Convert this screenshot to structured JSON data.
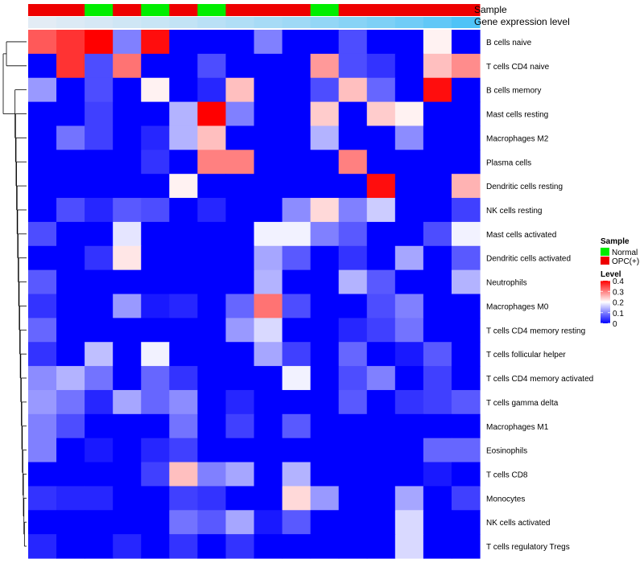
{
  "chart_data": {
    "type": "heatmap",
    "annotation_labels": [
      "Sample",
      "Gene expression level"
    ],
    "sample_groups": [
      "OPC(+)",
      "OPC(+)",
      "Normal",
      "OPC(+)",
      "Normal",
      "OPC(+)",
      "Normal",
      "OPC(+)",
      "OPC(+)",
      "OPC(+)",
      "Normal",
      "OPC(+)",
      "OPC(+)",
      "OPC(+)",
      "OPC(+)",
      "OPC(+)"
    ],
    "expression_level_bar": [
      0.05,
      0.08,
      0.11,
      0.14,
      0.17,
      0.2,
      0.24,
      0.28,
      0.32,
      0.36,
      0.41,
      0.46,
      0.51,
      0.57,
      0.64,
      0.72
    ],
    "rows": [
      "B cells naive",
      "T cells CD4 naive",
      "B cells memory",
      "Mast cells resting",
      "Macrophages M2",
      "Plasma cells",
      "Dendritic cells resting",
      "NK cells resting",
      "Mast cells activated",
      "Dendritic cells activated",
      "Neutrophils",
      "Macrophages M0",
      "T cells CD4 memory resting",
      "T cells follicular helper",
      "T cells CD4 memory activated",
      "T cells gamma delta",
      "Macrophages M1",
      "Eosinophils",
      "T cells CD8",
      "Monocytes",
      "NK cells activated",
      "T cells regulatory  Tregs"
    ],
    "values": [
      [
        0.33,
        0.36,
        0.4,
        0.1,
        0.39,
        0.0,
        0.0,
        0.0,
        0.1,
        0.0,
        0.0,
        0.06,
        0.0,
        0.0,
        0.21,
        0.0
      ],
      [
        0.0,
        0.36,
        0.06,
        0.31,
        0.0,
        0.0,
        0.06,
        0.0,
        0.0,
        0.0,
        0.28,
        0.06,
        0.04,
        0.0,
        0.25,
        0.29
      ],
      [
        0.12,
        0.0,
        0.06,
        0.0,
        0.21,
        0.0,
        0.03,
        0.25,
        0.0,
        0.0,
        0.06,
        0.25,
        0.08,
        0.0,
        0.39,
        0.0
      ],
      [
        0.0,
        0.0,
        0.05,
        0.0,
        0.0,
        0.14,
        0.4,
        0.1,
        0.0,
        0.0,
        0.24,
        0.0,
        0.24,
        0.21,
        0.0,
        0.0
      ],
      [
        0.0,
        0.09,
        0.05,
        0.0,
        0.03,
        0.14,
        0.25,
        0.0,
        0.0,
        0.0,
        0.14,
        0.0,
        0.0,
        0.11,
        0.0,
        0.0
      ],
      [
        0.0,
        0.0,
        0.0,
        0.0,
        0.04,
        0.0,
        0.3,
        0.3,
        0.0,
        0.0,
        0.0,
        0.3,
        0.0,
        0.0,
        0.0,
        0.0
      ],
      [
        0.0,
        0.0,
        0.0,
        0.0,
        0.0,
        0.21,
        0.0,
        0.0,
        0.0,
        0.0,
        0.0,
        0.0,
        0.39,
        0.0,
        0.0,
        0.26
      ],
      [
        0.0,
        0.06,
        0.03,
        0.07,
        0.06,
        0.0,
        0.03,
        0.0,
        0.0,
        0.11,
        0.23,
        0.1,
        0.16,
        0.0,
        0.0,
        0.05
      ],
      [
        0.06,
        0.0,
        0.0,
        0.18,
        0.0,
        0.0,
        0.0,
        0.0,
        0.19,
        0.19,
        0.1,
        0.07,
        0.0,
        0.0,
        0.06,
        0.19
      ],
      [
        0.0,
        0.0,
        0.04,
        0.22,
        0.0,
        0.0,
        0.0,
        0.0,
        0.13,
        0.07,
        0.0,
        0.04,
        0.0,
        0.13,
        0.0,
        0.07
      ],
      [
        0.07,
        0.0,
        0.0,
        0.0,
        0.0,
        0.0,
        0.0,
        0.0,
        0.14,
        0.0,
        0.0,
        0.14,
        0.07,
        0.0,
        0.0,
        0.14
      ],
      [
        0.04,
        0.0,
        0.0,
        0.12,
        0.02,
        0.03,
        0.0,
        0.08,
        0.31,
        0.06,
        0.0,
        0.0,
        0.06,
        0.1,
        0.0,
        0.0
      ],
      [
        0.08,
        0.0,
        0.0,
        0.0,
        0.0,
        0.0,
        0.0,
        0.12,
        0.17,
        0.0,
        0.0,
        0.03,
        0.05,
        0.09,
        0.0,
        0.0
      ],
      [
        0.04,
        0.0,
        0.15,
        0.0,
        0.19,
        0.0,
        0.0,
        0.0,
        0.13,
        0.05,
        0.0,
        0.08,
        0.0,
        0.02,
        0.07,
        0.0
      ],
      [
        0.11,
        0.14,
        0.09,
        0.0,
        0.08,
        0.04,
        0.0,
        0.0,
        0.0,
        0.19,
        0.0,
        0.06,
        0.1,
        0.0,
        0.05,
        0.0
      ],
      [
        0.12,
        0.09,
        0.03,
        0.13,
        0.08,
        0.11,
        0.0,
        0.03,
        0.0,
        0.0,
        0.0,
        0.07,
        0.0,
        0.04,
        0.05,
        0.07
      ],
      [
        0.1,
        0.06,
        0.0,
        0.0,
        0.0,
        0.09,
        0.0,
        0.05,
        0.0,
        0.07,
        0.0,
        0.0,
        0.0,
        0.0,
        0.0,
        0.0
      ],
      [
        0.1,
        0.0,
        0.02,
        0.0,
        0.03,
        0.05,
        0.0,
        0.0,
        0.0,
        0.0,
        0.0,
        0.0,
        0.0,
        0.0,
        0.08,
        0.08
      ],
      [
        0.0,
        0.0,
        0.0,
        0.0,
        0.05,
        0.25,
        0.1,
        0.13,
        0.0,
        0.14,
        0.0,
        0.0,
        0.0,
        0.0,
        0.02,
        0.0
      ],
      [
        0.04,
        0.03,
        0.03,
        0.0,
        0.0,
        0.05,
        0.04,
        0.0,
        0.0,
        0.23,
        0.12,
        0.0,
        0.0,
        0.13,
        0.0,
        0.05
      ],
      [
        0.0,
        0.0,
        0.0,
        0.0,
        0.0,
        0.09,
        0.07,
        0.13,
        0.02,
        0.07,
        0.0,
        0.0,
        0.0,
        0.17,
        0.0,
        0.0
      ],
      [
        0.03,
        0.0,
        0.0,
        0.03,
        0.0,
        0.04,
        0.0,
        0.04,
        0.0,
        0.0,
        0.0,
        0.0,
        0.0,
        0.17,
        0.0,
        0.0
      ]
    ],
    "legend": {
      "sample_title": "Sample",
      "sample_entries": [
        {
          "name": "Normal",
          "color": "#00ee00"
        },
        {
          "name": "OPC(+)",
          "color": "#ee0000"
        }
      ],
      "level_title": "Level",
      "level_ticks": [
        "0.4",
        "0.3",
        "0.2",
        "0.1",
        "0"
      ],
      "level_range": [
        0,
        0.4
      ],
      "placement": "right"
    },
    "colors": {
      "low": "#0000ff",
      "mid": "#ffffff",
      "high": "#ff0000",
      "normal": "#00ee00",
      "opc": "#ee0000",
      "expr_low": "#e3ecf5",
      "expr_high": "#4fc3f7"
    },
    "dendrogram": true
  }
}
